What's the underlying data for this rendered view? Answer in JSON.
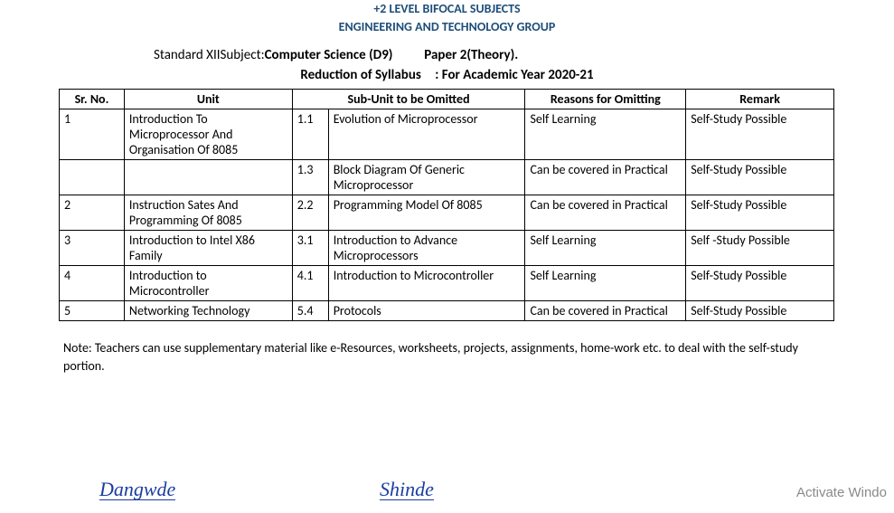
{
  "header": {
    "line1": "+2 LEVEL BIFOCAL SUBJECTS",
    "line2": "ENGINEERING AND TECHNOLOGY GROUP"
  },
  "divider_text": "-----------------------------------------------------------------------------------------------------------------------------------------------",
  "meta": {
    "standard_label": "Standard XII",
    "subject_label": "Subject:",
    "subject_value": "Computer Science (D9)",
    "paper_value": "Paper 2(Theory)."
  },
  "subtitle": {
    "left": "Reduction of Syllabus",
    "right": ": For Academic Year 2020-21"
  },
  "table": {
    "headers": {
      "sr": "Sr. No.",
      "unit": "Unit",
      "subunit": "Sub-Unit to be Omitted",
      "reason": "Reasons for Omitting",
      "remark": "Remark"
    },
    "rows": [
      {
        "sr": "1",
        "unit": "Introduction To Microprocessor And Organisation Of 8085",
        "subnum": "1.1",
        "subunit": "Evolution of Microprocessor",
        "reason": "Self Learning",
        "remark": "Self-Study Possible"
      },
      {
        "sr": "",
        "unit": "",
        "subnum": "1.3",
        "subunit": "Block Diagram Of Generic Microprocessor",
        "reason": "Can be covered in Practical",
        "remark": "Self-Study Possible"
      },
      {
        "sr": "2",
        "unit": "Instruction Sates And Programming Of 8085",
        "subnum": "2.2",
        "subunit": "Programming Model Of 8085",
        "reason": "Can be covered in Practical",
        "remark": "Self-Study Possible"
      },
      {
        "sr": "3",
        "unit": "Introduction to Intel X86 Family",
        "subnum": "3.1",
        "subunit": "Introduction to Advance Microprocessors",
        "reason": "Self Learning",
        "remark": "Self -Study Possible"
      },
      {
        "sr": "4",
        "unit": "Introduction to Microcontroller",
        "subnum": "4.1",
        "subunit": "Introduction to Microcontroller",
        "reason": "Self Learning",
        "remark": "Self-Study Possible"
      },
      {
        "sr": "5",
        "unit": "Networking Technology",
        "subnum": "5.4",
        "subunit": "Protocols",
        "reason": "Can be covered in Practical",
        "remark": "Self-Study Possible"
      }
    ]
  },
  "note": "Note: Teachers can use supplementary material like e-Resources, worksheets, projects, assignments, home-work etc. to deal with the self-study portion.",
  "signatures": {
    "sig1": "Dangwde",
    "sig2": "Shinde"
  },
  "watermark": "Activate Windo"
}
